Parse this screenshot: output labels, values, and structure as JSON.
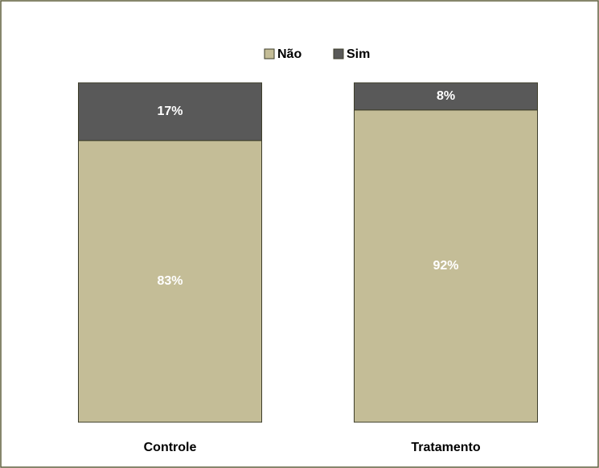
{
  "chart_data": {
    "type": "stacked_bar",
    "categories": [
      "Controle",
      "Tratamento"
    ],
    "series": [
      {
        "name": "Não",
        "color": "#c4bd97",
        "values": [
          83,
          92
        ],
        "value_labels": [
          "83%",
          "92%"
        ]
      },
      {
        "name": "Sim",
        "color": "#595959",
        "values": [
          17,
          8
        ],
        "value_labels": [
          "17%",
          "8%"
        ]
      }
    ],
    "legend": "top"
  }
}
